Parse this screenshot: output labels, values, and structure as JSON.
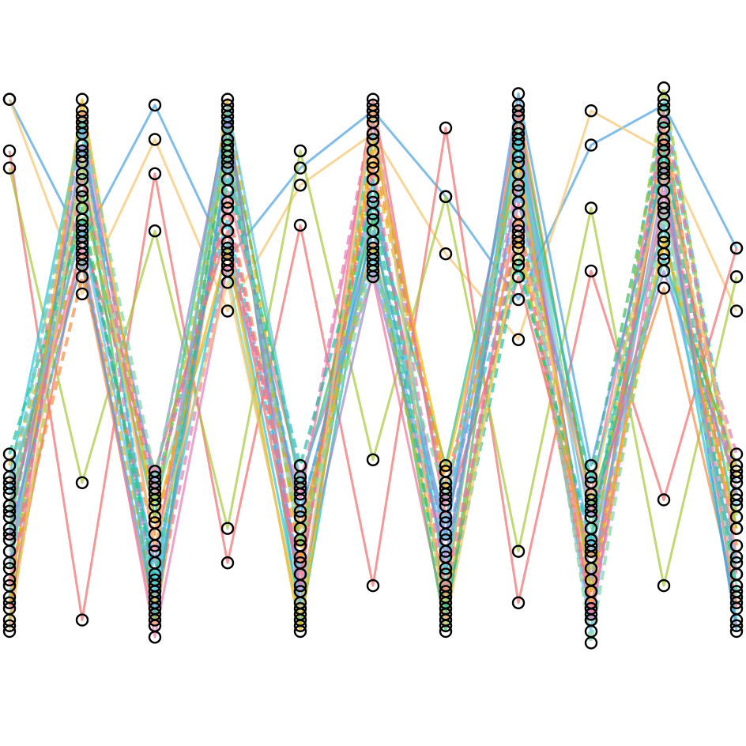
{
  "chart_data": {
    "type": "line",
    "title": "",
    "xlabel": "",
    "ylabel": "",
    "axes_visible": false,
    "grid": false,
    "legend": "none",
    "xlim": [
      0,
      100
    ],
    "ylim": [
      0,
      100
    ],
    "marker": {
      "shape": "open-circle",
      "edge_color": "#000000"
    },
    "palette": [
      "#f56b6b",
      "#fb8c3c",
      "#f4b400",
      "#a6c936",
      "#3fbf5f",
      "#1ec4a0",
      "#26c6da",
      "#4aa3df",
      "#9b87d4",
      "#e87bb4",
      "#f2739a",
      "#f7c46c",
      "#7dd3a8",
      "#5bc0eb"
    ],
    "series": [
      {
        "values": [
          97,
          72,
          96,
          69,
          85,
          95,
          80,
          62,
          89,
          96,
          71
        ],
        "style": "solid",
        "color": "#4aa3df"
      },
      {
        "values": [
          97,
          63,
          90,
          60,
          82,
          91,
          70,
          55,
          95,
          88,
          60
        ],
        "style": "solid",
        "color": "#f7c46c"
      },
      {
        "values": [
          88,
          6,
          84,
          16,
          75,
          12,
          92,
          9,
          67,
          27,
          71
        ],
        "style": "solid",
        "color": "#f56b6b"
      },
      {
        "values": [
          85,
          30,
          74,
          22,
          88,
          34,
          80,
          18,
          78,
          12,
          66
        ],
        "style": "solid",
        "color": "#a6c936"
      },
      {
        "values": [
          26,
          78,
          12,
          90,
          19,
          83,
          8,
          74,
          31,
          93,
          14
        ],
        "style": "dashed",
        "color": "#3fbf5f"
      },
      {
        "values": [
          20,
          92,
          8,
          70,
          28,
          95,
          15,
          84,
          6,
          78,
          35
        ],
        "style": "dashed",
        "color": "#e87bb4"
      },
      {
        "values": [
          15,
          81,
          24,
          95,
          5,
          77,
          33,
          90,
          11,
          88,
          22
        ],
        "style": "solid",
        "color": "#1ec4a0"
      },
      {
        "values": [
          30,
          68,
          5,
          86,
          22,
          72,
          10,
          96,
          25,
          64,
          9
        ],
        "style": "solid",
        "color": "#fb8c3c"
      },
      {
        "values": [
          10,
          88,
          29,
          76,
          14,
          91,
          27,
          69,
          19,
          97,
          28
        ],
        "style": "dashed",
        "color": "#26c6da"
      },
      {
        "values": [
          24,
          75,
          16,
          93,
          9,
          80,
          21,
          87,
          13,
          83,
          5
        ],
        "style": "solid",
        "color": "#9b87d4"
      },
      {
        "values": [
          5,
          95,
          18,
          81,
          31,
          66,
          6,
          79,
          28,
          90,
          17
        ],
        "style": "solid",
        "color": "#f2739a"
      },
      {
        "values": [
          33,
          70,
          9,
          97,
          17,
          86,
          29,
          73,
          8,
          72,
          31
        ],
        "style": "dashed",
        "color": "#f4b400"
      },
      {
        "values": [
          18,
          84,
          27,
          67,
          6,
          94,
          12,
          92,
          22,
          79,
          12
        ],
        "style": "solid",
        "color": "#7dd3a8"
      },
      {
        "values": [
          28,
          91,
          13,
          85,
          25,
          69,
          18,
          81,
          4,
          95,
          26
        ],
        "style": "dashed",
        "color": "#5bc0eb"
      },
      {
        "values": [
          8,
          73,
          32,
          74,
          12,
          97,
          24,
          66,
          17,
          86,
          8
        ],
        "style": "solid",
        "color": "#f56b6b"
      },
      {
        "values": [
          22,
          86,
          6,
          92,
          29,
          76,
          4,
          94,
          26,
          69,
          33
        ],
        "style": "solid",
        "color": "#3fbf5f"
      },
      {
        "values": [
          13,
          66,
          21,
          79,
          16,
          88,
          30,
          77,
          9,
          92,
          19
        ],
        "style": "dashed",
        "color": "#fb8c3c"
      },
      {
        "values": [
          31,
          93,
          11,
          72,
          8,
          83,
          14,
          89,
          30,
          75,
          6
        ],
        "style": "solid",
        "color": "#26c6da"
      },
      {
        "values": [
          6,
          80,
          26,
          88,
          20,
          71,
          9,
          71,
          15,
          99,
          24
        ],
        "style": "dashed",
        "color": "#a6c936"
      },
      {
        "values": [
          26,
          71,
          3,
          68,
          27,
          93,
          26,
          95,
          6,
          81,
          14
        ],
        "style": "solid",
        "color": "#e87bb4"
      },
      {
        "values": [
          16,
          89,
          30,
          94,
          11,
          67,
          17,
          82,
          24,
          67,
          30
        ],
        "style": "solid",
        "color": "#9b87d4"
      },
      {
        "values": [
          35,
          76,
          14,
          83,
          33,
          79,
          7,
          68,
          20,
          89,
          11
        ],
        "style": "dashed",
        "color": "#1ec4a0"
      },
      {
        "values": [
          9,
          97,
          23,
          71,
          4,
          90,
          32,
          86,
          11,
          73,
          22
        ],
        "style": "solid",
        "color": "#f4b400"
      },
      {
        "values": [
          21,
          69,
          7,
          87,
          24,
          74,
          20,
          98,
          33,
          85,
          4
        ],
        "style": "solid",
        "color": "#4aa3df"
      },
      {
        "values": [
          12,
          83,
          28,
          78,
          14,
          85,
          11,
          75,
          7,
          95,
          27
        ],
        "style": "dashed",
        "color": "#f2739a"
      },
      {
        "values": [
          29,
          74,
          10,
          96,
          30,
          70,
          23,
          91,
          18,
          70,
          16
        ],
        "style": "solid",
        "color": "#5bc0eb"
      },
      {
        "values": [
          4,
          87,
          19,
          65,
          7,
          96,
          5,
          72,
          27,
          84,
          32
        ],
        "style": "solid",
        "color": "#f7c46c"
      },
      {
        "values": [
          25,
          94,
          31,
          89,
          19,
          68,
          28,
          84,
          2,
          77,
          10
        ],
        "style": "dashed",
        "color": "#7dd3a8"
      }
    ]
  }
}
